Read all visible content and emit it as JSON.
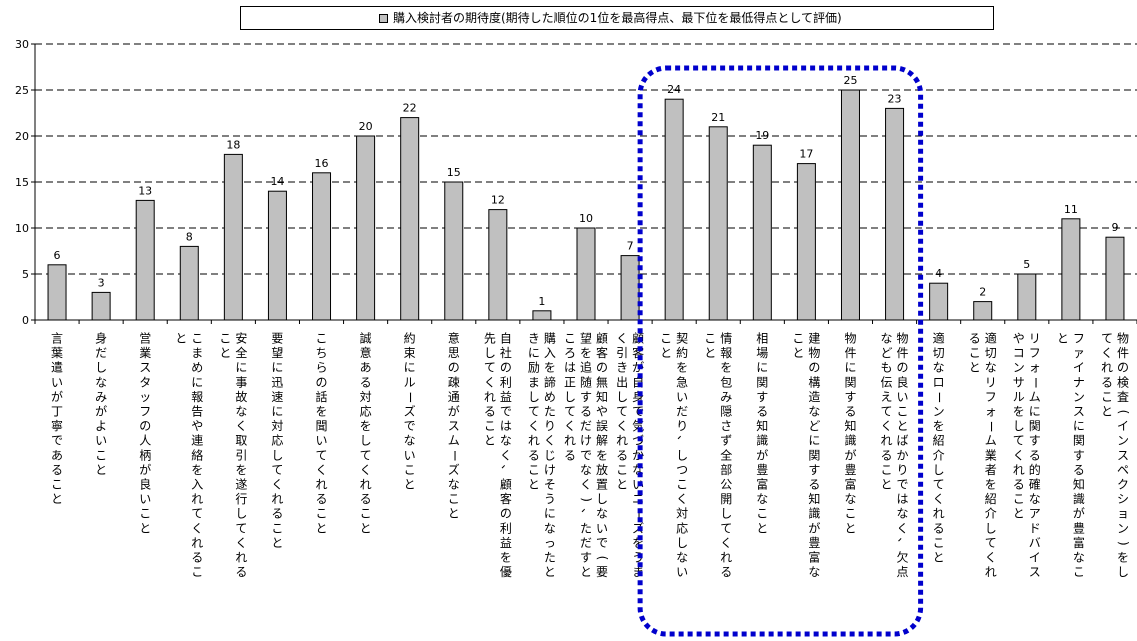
{
  "chart_data": {
    "type": "bar",
    "legend_position": "top",
    "grid": true,
    "ylim": [
      0,
      30
    ],
    "yticks": [
      0,
      5,
      10,
      15,
      20,
      25,
      30
    ],
    "series": [
      {
        "name": "購入検討者の期待度(期待した順位の1位を最高得点、最下位を最低得点として評価)",
        "color": "#c0c0c0",
        "values": [
          6,
          3,
          13,
          8,
          18,
          14,
          16,
          20,
          22,
          15,
          12,
          1,
          10,
          7,
          24,
          21,
          19,
          17,
          25,
          23,
          4,
          2,
          5,
          11,
          9
        ]
      }
    ],
    "categories": [
      [
        "言葉遣いが丁寧であること"
      ],
      [
        "身だしなみがよいこと"
      ],
      [
        "営業スタッフの人柄が良いこと"
      ],
      [
        "こまめに報告や連絡を入れてくれるこ",
        "と"
      ],
      [
        "安全に事故なく取引を遂行してくれる",
        "こと"
      ],
      [
        "要望に迅速に対応してくれること"
      ],
      [
        "こちらの話を聞いてくれること"
      ],
      [
        "誠意ある対応をしてくれること"
      ],
      [
        "約束にルーズでないこと"
      ],
      [
        "意思の疎通がスムーズなこと"
      ],
      [
        "自社の利益ではなく、顧客の利益を優",
        "先してくれること"
      ],
      [
        "購入を諦めたりくじけそうになったと",
        "きに励ましてくれること"
      ],
      [
        "顧客の無知や誤解を放置しないで(要",
        "望を追随するだけでなく)、ただすと",
        "ころは正してくれる"
      ],
      [
        "顧客が自身で気づかないニーズをうま",
        "く引き出してくれること"
      ],
      [
        "契約を急いだり、しつこく対応しない",
        "こと"
      ],
      [
        "情報を包み隠さず全部公開してくれる",
        "こと"
      ],
      [
        "相場に関する知識が豊富なこと"
      ],
      [
        "建物の構造などに関する知識が豊富な",
        "こと"
      ],
      [
        "物件に関する知識が豊富なこと"
      ],
      [
        "物件の良いことばかりではなく、欠点",
        "なども伝えてくれること"
      ],
      [
        "適切なローンを紹介してくれること"
      ],
      [
        "適切なリフォーム業者を紹介してくれ",
        "ること"
      ],
      [
        "リフォームに関する的確なアドバイス",
        "やコンサルをしてくれること"
      ],
      [
        "ファイナンスに関する知識が豊富なこ",
        "と"
      ],
      [
        "物件の検査(インスペクション)をし",
        "てくれること"
      ]
    ],
    "highlight": {
      "from": 14,
      "to": 19,
      "style": "dotted",
      "color": "#0000cc"
    }
  }
}
